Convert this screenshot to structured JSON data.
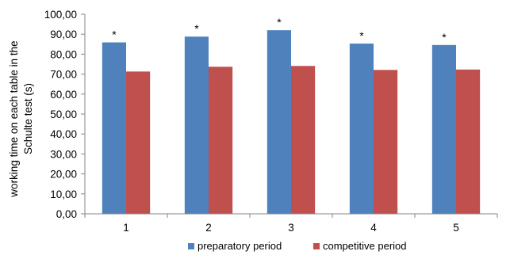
{
  "chart_data": {
    "type": "bar",
    "ylabel_lines": [
      "working time on each table in the",
      "Schulte test (s)"
    ],
    "categories": [
      "1",
      "2",
      "3",
      "4",
      "5"
    ],
    "ylim": [
      0,
      100
    ],
    "ytick_step": 10,
    "ytick_labels": [
      "0,00",
      "10,00",
      "20,00",
      "30,00",
      "40,00",
      "50,00",
      "60,00",
      "70,00",
      "80,00",
      "90,00",
      "100,00"
    ],
    "grid": false,
    "legend_position": "bottom",
    "significance_marker": "*",
    "series": [
      {
        "name": "preparatory period",
        "color": "#4f81bd",
        "values": [
          85.9,
          88.8,
          92.0,
          85.3,
          84.6
        ],
        "markers": [
          "*",
          "*",
          "*",
          "*",
          "*"
        ]
      },
      {
        "name": "competitive period",
        "color": "#c0504d",
        "values": [
          71.3,
          73.7,
          74.1,
          72.1,
          72.3
        ],
        "markers": [
          "",
          "",
          "",
          "",
          ""
        ]
      }
    ]
  }
}
